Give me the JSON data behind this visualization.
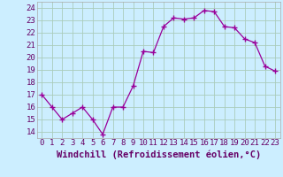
{
  "x": [
    0,
    1,
    2,
    3,
    4,
    5,
    6,
    7,
    8,
    9,
    10,
    11,
    12,
    13,
    14,
    15,
    16,
    17,
    18,
    19,
    20,
    21,
    22,
    23
  ],
  "y": [
    17,
    16,
    15,
    15.5,
    16,
    15,
    13.8,
    16,
    16,
    17.7,
    20.5,
    20.4,
    22.5,
    23.2,
    23.1,
    23.2,
    23.8,
    23.7,
    22.5,
    22.4,
    21.5,
    21.2,
    19.3,
    18.9
  ],
  "line_color": "#990099",
  "marker_color": "#990099",
  "bg_color": "#cceeff",
  "grid_color": "#aaccbb",
  "spine_color": "#888888",
  "xlabel": "Windchill (Refroidissement éolien,°C)",
  "xlim": [
    -0.5,
    23.5
  ],
  "ylim": [
    13.5,
    24.5
  ],
  "yticks": [
    14,
    15,
    16,
    17,
    18,
    19,
    20,
    21,
    22,
    23,
    24
  ],
  "xticks": [
    0,
    1,
    2,
    3,
    4,
    5,
    6,
    7,
    8,
    9,
    10,
    11,
    12,
    13,
    14,
    15,
    16,
    17,
    18,
    19,
    20,
    21,
    22,
    23
  ],
  "tick_font_size": 6.5,
  "label_font_size": 7.5
}
